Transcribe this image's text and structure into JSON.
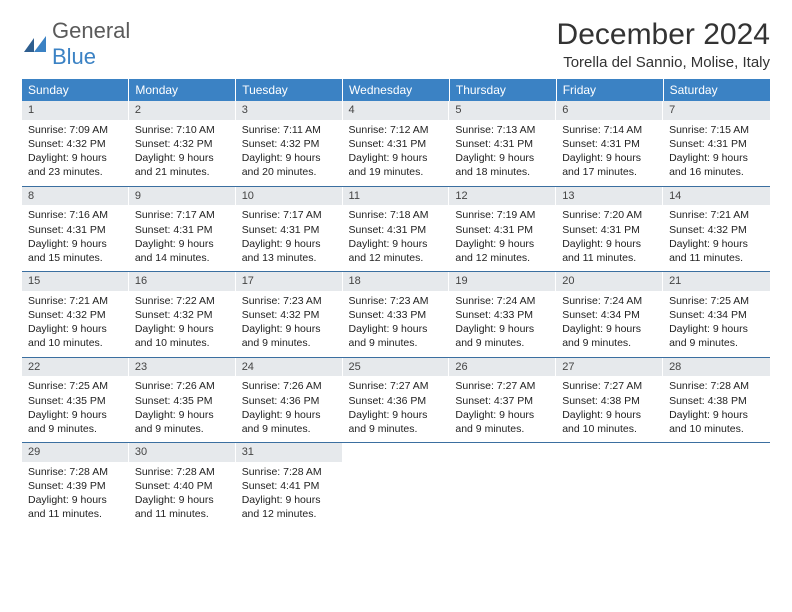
{
  "logo": {
    "main": "General",
    "sub": "Blue"
  },
  "title": "December 2024",
  "location": "Torella del Sannio, Molise, Italy",
  "colors": {
    "header_bg": "#3b82c4",
    "header_fg": "#ffffff",
    "daynum_bg": "#e6e9ec",
    "border": "#3b6fa0",
    "text": "#222222",
    "logo_gray": "#5a5a5a",
    "logo_blue": "#3b82c4"
  },
  "typography": {
    "title_fontsize": 30,
    "location_fontsize": 15,
    "header_fontsize": 12,
    "cell_fontsize": 10.5
  },
  "weekdays": [
    "Sunday",
    "Monday",
    "Tuesday",
    "Wednesday",
    "Thursday",
    "Friday",
    "Saturday"
  ],
  "weeks": [
    [
      {
        "n": "1",
        "sr": "7:09 AM",
        "ss": "4:32 PM",
        "dl": "9 hours and 23 minutes."
      },
      {
        "n": "2",
        "sr": "7:10 AM",
        "ss": "4:32 PM",
        "dl": "9 hours and 21 minutes."
      },
      {
        "n": "3",
        "sr": "7:11 AM",
        "ss": "4:32 PM",
        "dl": "9 hours and 20 minutes."
      },
      {
        "n": "4",
        "sr": "7:12 AM",
        "ss": "4:31 PM",
        "dl": "9 hours and 19 minutes."
      },
      {
        "n": "5",
        "sr": "7:13 AM",
        "ss": "4:31 PM",
        "dl": "9 hours and 18 minutes."
      },
      {
        "n": "6",
        "sr": "7:14 AM",
        "ss": "4:31 PM",
        "dl": "9 hours and 17 minutes."
      },
      {
        "n": "7",
        "sr": "7:15 AM",
        "ss": "4:31 PM",
        "dl": "9 hours and 16 minutes."
      }
    ],
    [
      {
        "n": "8",
        "sr": "7:16 AM",
        "ss": "4:31 PM",
        "dl": "9 hours and 15 minutes."
      },
      {
        "n": "9",
        "sr": "7:17 AM",
        "ss": "4:31 PM",
        "dl": "9 hours and 14 minutes."
      },
      {
        "n": "10",
        "sr": "7:17 AM",
        "ss": "4:31 PM",
        "dl": "9 hours and 13 minutes."
      },
      {
        "n": "11",
        "sr": "7:18 AM",
        "ss": "4:31 PM",
        "dl": "9 hours and 12 minutes."
      },
      {
        "n": "12",
        "sr": "7:19 AM",
        "ss": "4:31 PM",
        "dl": "9 hours and 12 minutes."
      },
      {
        "n": "13",
        "sr": "7:20 AM",
        "ss": "4:31 PM",
        "dl": "9 hours and 11 minutes."
      },
      {
        "n": "14",
        "sr": "7:21 AM",
        "ss": "4:32 PM",
        "dl": "9 hours and 11 minutes."
      }
    ],
    [
      {
        "n": "15",
        "sr": "7:21 AM",
        "ss": "4:32 PM",
        "dl": "9 hours and 10 minutes."
      },
      {
        "n": "16",
        "sr": "7:22 AM",
        "ss": "4:32 PM",
        "dl": "9 hours and 10 minutes."
      },
      {
        "n": "17",
        "sr": "7:23 AM",
        "ss": "4:32 PM",
        "dl": "9 hours and 9 minutes."
      },
      {
        "n": "18",
        "sr": "7:23 AM",
        "ss": "4:33 PM",
        "dl": "9 hours and 9 minutes."
      },
      {
        "n": "19",
        "sr": "7:24 AM",
        "ss": "4:33 PM",
        "dl": "9 hours and 9 minutes."
      },
      {
        "n": "20",
        "sr": "7:24 AM",
        "ss": "4:34 PM",
        "dl": "9 hours and 9 minutes."
      },
      {
        "n": "21",
        "sr": "7:25 AM",
        "ss": "4:34 PM",
        "dl": "9 hours and 9 minutes."
      }
    ],
    [
      {
        "n": "22",
        "sr": "7:25 AM",
        "ss": "4:35 PM",
        "dl": "9 hours and 9 minutes."
      },
      {
        "n": "23",
        "sr": "7:26 AM",
        "ss": "4:35 PM",
        "dl": "9 hours and 9 minutes."
      },
      {
        "n": "24",
        "sr": "7:26 AM",
        "ss": "4:36 PM",
        "dl": "9 hours and 9 minutes."
      },
      {
        "n": "25",
        "sr": "7:27 AM",
        "ss": "4:36 PM",
        "dl": "9 hours and 9 minutes."
      },
      {
        "n": "26",
        "sr": "7:27 AM",
        "ss": "4:37 PM",
        "dl": "9 hours and 9 minutes."
      },
      {
        "n": "27",
        "sr": "7:27 AM",
        "ss": "4:38 PM",
        "dl": "9 hours and 10 minutes."
      },
      {
        "n": "28",
        "sr": "7:28 AM",
        "ss": "4:38 PM",
        "dl": "9 hours and 10 minutes."
      }
    ],
    [
      {
        "n": "29",
        "sr": "7:28 AM",
        "ss": "4:39 PM",
        "dl": "9 hours and 11 minutes."
      },
      {
        "n": "30",
        "sr": "7:28 AM",
        "ss": "4:40 PM",
        "dl": "9 hours and 11 minutes."
      },
      {
        "n": "31",
        "sr": "7:28 AM",
        "ss": "4:41 PM",
        "dl": "9 hours and 12 minutes."
      },
      null,
      null,
      null,
      null
    ]
  ],
  "labels": {
    "sunrise": "Sunrise:",
    "sunset": "Sunset:",
    "daylight": "Daylight:"
  }
}
